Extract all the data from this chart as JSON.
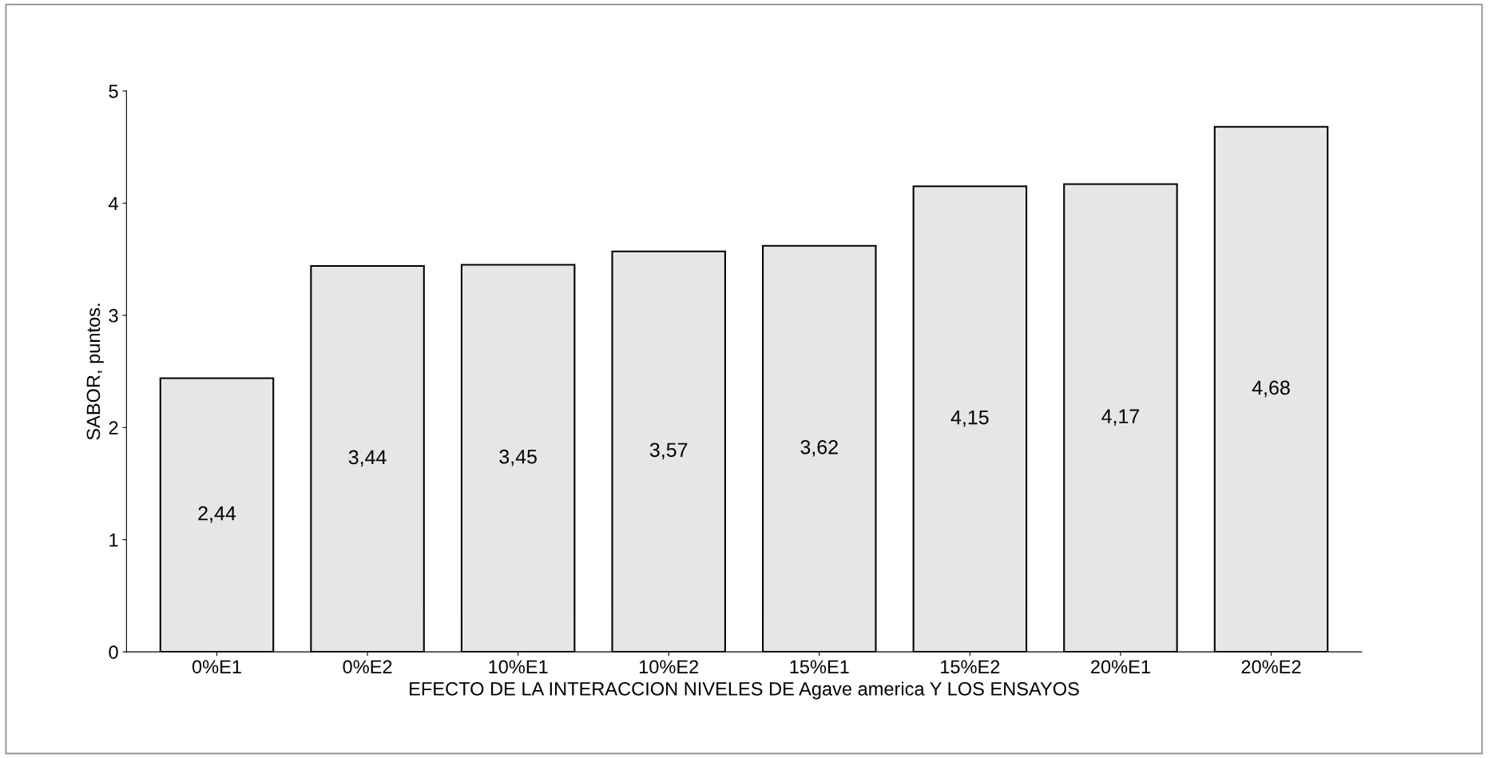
{
  "chart_data": {
    "type": "bar",
    "xlabel": "EFECTO DE LA INTERACCION NIVELES DE Agave america Y LOS ENSAYOS",
    "ylabel": "SABOR, puntos.",
    "categories": [
      "0%E1",
      "0%E2",
      "10%E1",
      "10%E2",
      "15%E1",
      "15%E2",
      "20%E1",
      "20%E2"
    ],
    "values": [
      2.44,
      3.44,
      3.45,
      3.57,
      3.62,
      4.15,
      4.17,
      4.68
    ],
    "value_labels": [
      "2,44",
      "3,44",
      "3,45",
      "3,57",
      "3,62",
      "4,15",
      "4,17",
      "4,68"
    ],
    "color": "#e6e6e6",
    "ylim": [
      0,
      5
    ],
    "yticks": [
      0,
      1,
      2,
      3,
      4,
      5
    ],
    "grid": false
  }
}
